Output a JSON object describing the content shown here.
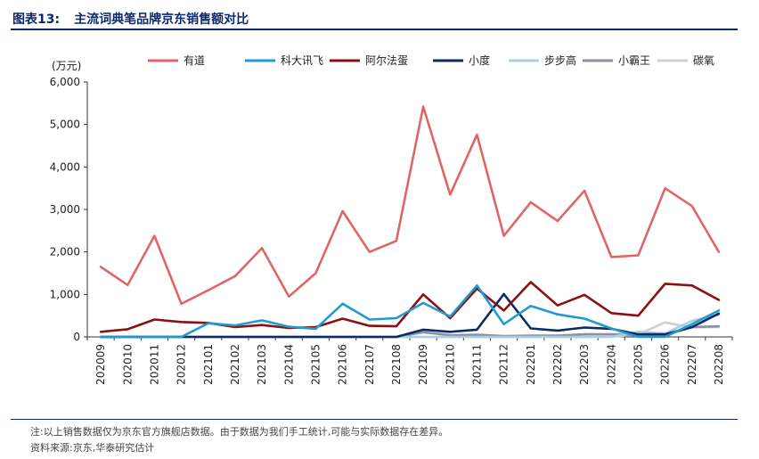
{
  "header": {
    "figure_label": "图表13:",
    "title": "主流词典笔品牌京东销售额对比"
  },
  "footer": {
    "note": "注:以上销售数据仅为京东官方旗舰店数据。由于数据为我们手工统计,可能与实际数据存在差异。",
    "source": "资料来源:京东,华泰研究估计"
  },
  "chart_data": {
    "type": "line",
    "title": "主流词典笔品牌京东销售额对比",
    "ylabel": "(万元)",
    "xlabel": "",
    "ylim": [
      0,
      6000
    ],
    "yticks": [
      0,
      1000,
      2000,
      3000,
      4000,
      5000,
      6000
    ],
    "ytick_labels": [
      "0",
      "1,000",
      "2,000",
      "3,000",
      "4,000",
      "5,000",
      "6,000"
    ],
    "grid": false,
    "legend_position": "top",
    "categories": [
      "202009",
      "202010",
      "202011",
      "202012",
      "202101",
      "202102",
      "202103",
      "202104",
      "202105",
      "202106",
      "202107",
      "202108",
      "202109",
      "202110",
      "202111",
      "202112",
      "202201",
      "202202",
      "202203",
      "202204",
      "202205",
      "202206",
      "202207",
      "202208"
    ],
    "series": [
      {
        "name": "有道",
        "color": "#e06666",
        "values": [
          1650,
          1220,
          2380,
          780,
          1100,
          1430,
          2090,
          950,
          1500,
          2960,
          2000,
          2260,
          5420,
          3350,
          4760,
          2380,
          3170,
          2730,
          3440,
          1880,
          1920,
          3500,
          3080,
          2000
        ]
      },
      {
        "name": "科大讯飞",
        "color": "#1f9bd1",
        "values": [
          0,
          0,
          0,
          0,
          320,
          270,
          390,
          240,
          190,
          780,
          410,
          440,
          800,
          480,
          1210,
          300,
          730,
          530,
          430,
          200,
          0,
          0,
          300,
          620
        ]
      },
      {
        "name": "阿尔法蛋",
        "color": "#8b1010",
        "values": [
          120,
          180,
          410,
          350,
          330,
          230,
          280,
          210,
          230,
          430,
          260,
          250,
          1000,
          440,
          1140,
          620,
          1290,
          740,
          990,
          560,
          500,
          1250,
          1210,
          870
        ]
      },
      {
        "name": "小度",
        "color": "#0d2a63",
        "values": [
          0,
          0,
          0,
          0,
          0,
          0,
          0,
          0,
          0,
          0,
          0,
          0,
          170,
          120,
          170,
          1010,
          200,
          150,
          220,
          190,
          60,
          60,
          230,
          550
        ]
      },
      {
        "name": "步步高",
        "color": "#a9cfe3",
        "values": [
          0,
          0,
          0,
          0,
          0,
          0,
          0,
          0,
          0,
          0,
          0,
          0,
          0,
          0,
          0,
          0,
          0,
          0,
          0,
          0,
          120,
          80,
          380,
          520
        ]
      },
      {
        "name": "小霸王",
        "color": "#8a8fa5",
        "values": [
          0,
          0,
          0,
          0,
          0,
          0,
          0,
          0,
          0,
          0,
          0,
          0,
          110,
          40,
          50,
          20,
          30,
          30,
          60,
          60,
          50,
          40,
          230,
          250
        ]
      },
      {
        "name": "碳氧",
        "color": "#cfcfcf",
        "values": [
          0,
          0,
          0,
          0,
          0,
          0,
          0,
          0,
          0,
          0,
          0,
          0,
          0,
          0,
          0,
          0,
          0,
          0,
          0,
          0,
          60,
          340,
          220,
          230
        ]
      }
    ]
  }
}
